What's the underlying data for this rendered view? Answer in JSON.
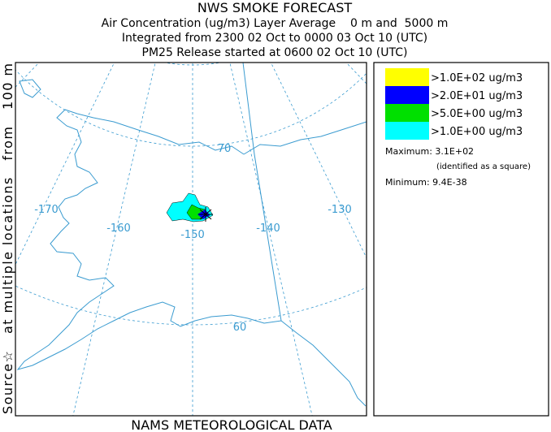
{
  "header": {
    "title": "NWS SMOKE FORECAST",
    "lines": [
      "Air Concentration (ug/m3) Layer Average    0 m and  5000 m",
      "Integrated from 2300 02 Oct to 0000 03 Oct 10 (UTC)",
      "PM25 Release started at 0600 02 Oct 10 (UTC)"
    ]
  },
  "side_label": "Source☆   at multiple locations   from   100 m",
  "footer": "NAMS METEOROLOGICAL DATA",
  "map": {
    "graticule_labels": [
      "-170",
      "-160",
      "-150",
      "-140",
      "-130",
      "70",
      "60"
    ]
  },
  "legend": {
    "items": [
      {
        "label": ">1.0E+02 ug/m3",
        "color": "#ffff00"
      },
      {
        "label": ">2.0E+01 ug/m3",
        "color": "#0000ff"
      },
      {
        "label": ">5.0E+00 ug/m3",
        "color": "#00e000"
      },
      {
        "label": ">1.0E+00 ug/m3",
        "color": "#00ffff"
      }
    ],
    "maximum": "Maximum: 3.1E+02",
    "identified": "(identified as a square)",
    "minimum": "Minimum: 9.4E-38"
  }
}
